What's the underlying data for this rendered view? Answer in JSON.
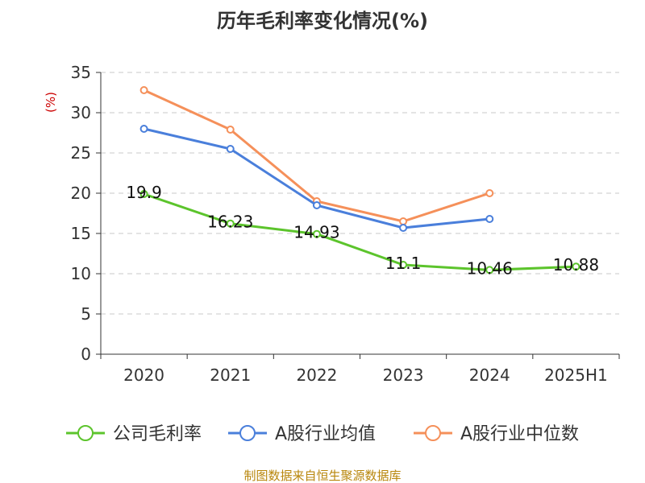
{
  "chart_data": {
    "type": "line",
    "title": "历年毛利率变化情况(%)",
    "ylabel": "(%)",
    "categories": [
      "2020",
      "2021",
      "2022",
      "2023",
      "2024",
      "2025H1"
    ],
    "ylim": [
      0,
      35
    ],
    "yticks": [
      0,
      5,
      10,
      15,
      20,
      25,
      30,
      35
    ],
    "grid": "horizontal-dashed",
    "legend_position": "bottom",
    "series": [
      {
        "name": "公司毛利率",
        "color": "#5cc42c",
        "values": [
          19.9,
          16.23,
          14.93,
          11.1,
          10.46,
          10.88
        ],
        "labels": [
          "19.9",
          "16.23",
          "14.93",
          "11.1",
          "10.46",
          "10.88"
        ]
      },
      {
        "name": "A股行业均值",
        "color": "#4a7fdb",
        "values": [
          28.0,
          25.5,
          18.5,
          15.7,
          16.8,
          null
        ]
      },
      {
        "name": "A股行业中位数",
        "color": "#f5905a",
        "values": [
          32.8,
          27.9,
          19.0,
          16.5,
          20.0,
          null
        ]
      }
    ]
  },
  "source": "制图数据来自恒生聚源数据库"
}
